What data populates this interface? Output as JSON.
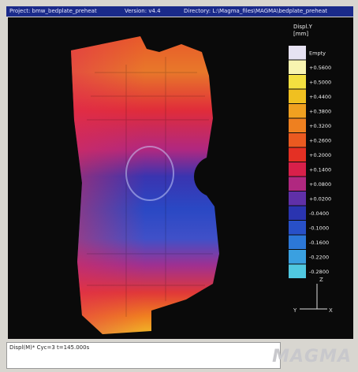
{
  "title_bar": {
    "project": "Project: bmw_bedplate_preheat",
    "version": "Version: v4.4",
    "directory": "Directory: L:\\Magma_files\\MAGMA\\bedplate_preheat"
  },
  "legend": {
    "title": "Displ.Y",
    "unit": "[mm]",
    "items": [
      {
        "label": "Empty",
        "color": "#e6e2f2"
      },
      {
        "label": "+0.5600",
        "color": "#f8f4b0"
      },
      {
        "label": "+0.5000",
        "color": "#f4e040"
      },
      {
        "label": "+0.4400",
        "color": "#f0c020"
      },
      {
        "label": "+0.3800",
        "color": "#f0a020"
      },
      {
        "label": "+0.3200",
        "color": "#ee8020"
      },
      {
        "label": "+0.2600",
        "color": "#ea5a20"
      },
      {
        "label": "+0.2000",
        "color": "#e43024"
      },
      {
        "label": "+0.1400",
        "color": "#d8204a"
      },
      {
        "label": "+0.0800",
        "color": "#b02880"
      },
      {
        "label": "+0.0200",
        "color": "#6030a8"
      },
      {
        "label": "-0.0400",
        "color": "#2a34b0"
      },
      {
        "label": "-0.1000",
        "color": "#2850c8"
      },
      {
        "label": "-0.1600",
        "color": "#2c78d8"
      },
      {
        "label": "-0.2200",
        "color": "#3aa0e0"
      },
      {
        "label": "-0.2800",
        "color": "#50c8e0"
      }
    ]
  },
  "axes": {
    "z": "Z",
    "y": "Y",
    "x": "X"
  },
  "status": "Displ(M)* Cyc=3 t=145.000s",
  "logo": "MAGMA"
}
